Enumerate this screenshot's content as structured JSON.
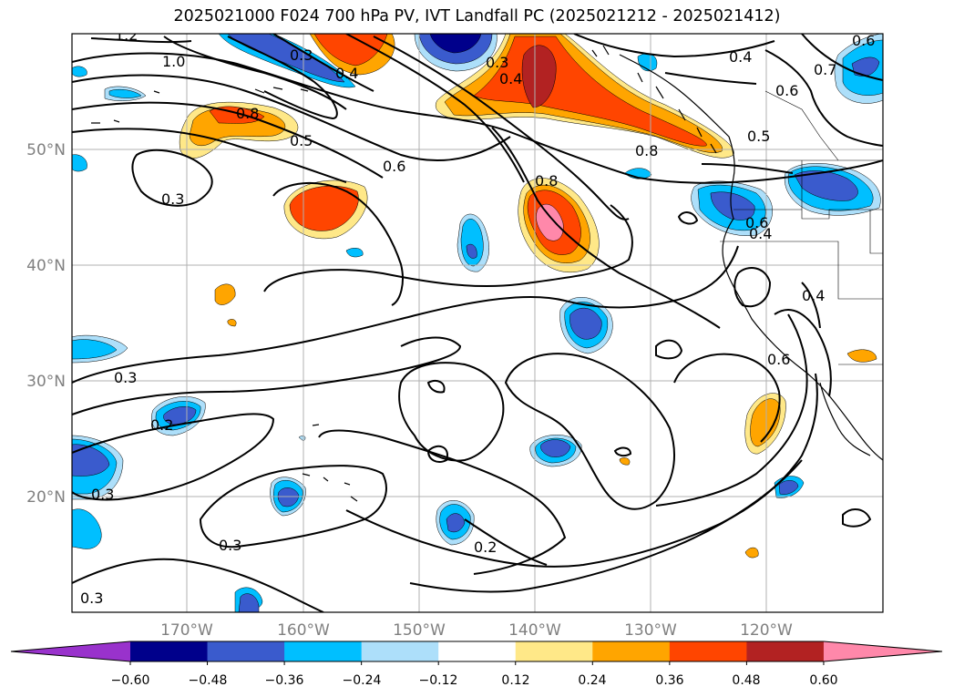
{
  "title": "2025021000 F024 700 hPa PV, IVT Landfall PC (2025021212 - 2025021412)",
  "lon_ticks": [
    "170°W",
    "160°W",
    "150°W",
    "140°W",
    "130°W",
    "120°W"
  ],
  "lat_ticks": [
    "50°N",
    "40°N",
    "30°N",
    "20°N"
  ],
  "colorbar": {
    "labels": [
      "−0.60",
      "−0.48",
      "−0.36",
      "−0.24",
      "−0.12",
      "0.12",
      "0.24",
      "0.36",
      "0.48",
      "0.60"
    ],
    "colors": [
      "#9932CC",
      "#00008B",
      "#3A5BCD",
      "#00BFFF",
      "#ADDFFA",
      "#FFFFFF",
      "#FFE888",
      "#FFA500",
      "#FF4500",
      "#B22222",
      "#FF88AA"
    ]
  },
  "contour_labels": [
    "1.2",
    "1.0",
    "0.3",
    "0.4",
    "0.3",
    "0.4",
    "0.4",
    "0.6",
    "0.8",
    "0.8",
    "0.5",
    "0.6",
    "0.8",
    "0.5",
    "0.3",
    "0.4",
    "0.6",
    "0.4",
    "0.7",
    "0.6",
    "0.6",
    "0.3",
    "0.2",
    "0.3",
    "0.3",
    "0.2",
    "0.3"
  ]
}
